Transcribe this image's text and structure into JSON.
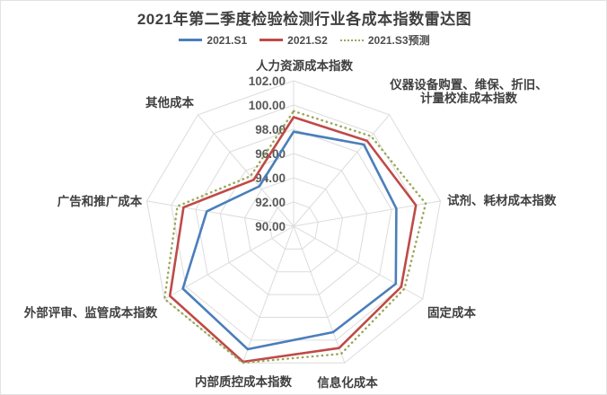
{
  "chart_data": {
    "type": "radar",
    "title": "2021年第二季度检验检测行业各成本指数雷达图",
    "legend_position": "top",
    "grid": true,
    "radial_axis": {
      "min": 90,
      "max": 102,
      "step": 2,
      "tick_labels": [
        "102.00",
        "100.00",
        "98.00",
        "96.00",
        "94.00",
        "92.00",
        "90.00"
      ]
    },
    "categories": [
      "人力资源成本指数",
      "仪器设备购置、维保、折旧、\n计量校准成本指数",
      "试剂、耗材成本指数",
      "固定成本",
      "信息化成本",
      "内部质控成本指数",
      "外部评审、监管成本指数",
      "广告和推广成本",
      "其他成本"
    ],
    "series": [
      {
        "name": "2021.S1",
        "style": "solid",
        "color": "#4a7ebb",
        "values": [
          97.8,
          98.8,
          98.4,
          99.5,
          99.3,
          100.8,
          100.3,
          97.1,
          94.3
        ]
      },
      {
        "name": "2021.S2",
        "style": "solid",
        "color": "#bf4a47",
        "values": [
          99.0,
          99.2,
          100.0,
          100.0,
          100.7,
          101.9,
          101.5,
          99.0,
          95.0
        ]
      },
      {
        "name": "2021.S3预测",
        "style": "dotted",
        "color": "#9aa556",
        "values": [
          99.5,
          99.7,
          100.8,
          100.3,
          101.2,
          102.0,
          102.0,
          99.5,
          95.4
        ]
      }
    ],
    "colors": {
      "grid": "#dcdcdc",
      "tick_label": "#595959",
      "axis_label": "#3f3f3f",
      "title": "#3f3f3f"
    }
  }
}
